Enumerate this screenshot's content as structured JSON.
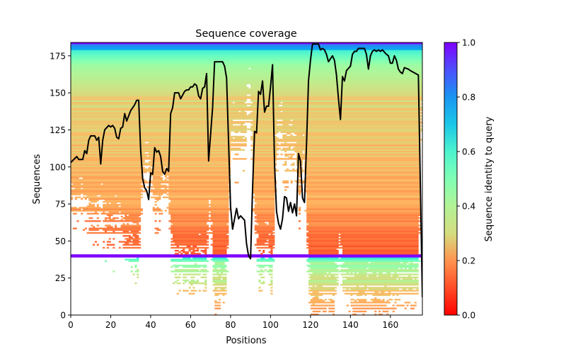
{
  "chart_data": {
    "type": "heatmap",
    "title": "Sequence coverage",
    "xlabel": "Positions",
    "ylabel": "Sequences",
    "xlim": [
      0,
      176
    ],
    "ylim": [
      0,
      184
    ],
    "xticks": [
      0,
      20,
      40,
      60,
      80,
      100,
      120,
      140,
      160
    ],
    "yticks": [
      0,
      25,
      50,
      75,
      100,
      125,
      150,
      175
    ],
    "colorbar": {
      "label": "Sequence identity to query",
      "range": [
        0,
        1
      ],
      "ticks": [
        "0.0",
        "0.2",
        "0.4",
        "0.6",
        "0.8",
        "1.0"
      ],
      "colormap": "rainbow_r"
    },
    "query_rows": [
      39,
      183
    ],
    "coverage_line": {
      "name": "coverage",
      "color": "#000000",
      "x": [
        0,
        3,
        4,
        6,
        7,
        8,
        9,
        10,
        12,
        13,
        14,
        15,
        16,
        17,
        19,
        20,
        21,
        22,
        23,
        24,
        25,
        26,
        27,
        28,
        30,
        32,
        33,
        34,
        35,
        36,
        37,
        38,
        39,
        40,
        41,
        42,
        43,
        44,
        45,
        46,
        47,
        48,
        49,
        50,
        51,
        52,
        54,
        55,
        57,
        58,
        59,
        60,
        61,
        62,
        63,
        64,
        65,
        66,
        67,
        68,
        69,
        71,
        72,
        76,
        77,
        78,
        80,
        81,
        83,
        84,
        85,
        87,
        88,
        89,
        90,
        91,
        92,
        93,
        94,
        95,
        96,
        97,
        98,
        99,
        100,
        101,
        102,
        103,
        104,
        105,
        106,
        107,
        108,
        109,
        110,
        111,
        112,
        113,
        114,
        115,
        116,
        117,
        118,
        119,
        120,
        121,
        124,
        125,
        126,
        127,
        128,
        129,
        131,
        132,
        133,
        134,
        135,
        136,
        137,
        138,
        140,
        141,
        142,
        143,
        144,
        147,
        148,
        149,
        150,
        151,
        152,
        153,
        154,
        155,
        156,
        158,
        159,
        160,
        161,
        162,
        163,
        164,
        165,
        166,
        167,
        169,
        170,
        174,
        176
      ],
      "y": [
        103,
        107,
        105,
        105,
        111,
        109,
        118,
        121,
        121,
        118,
        120,
        102,
        118,
        125,
        128,
        127,
        128,
        126,
        120,
        119,
        126,
        127,
        136,
        131,
        138,
        142,
        145,
        145,
        111,
        92,
        86,
        84,
        78,
        96,
        95,
        113,
        110,
        111,
        107,
        97,
        95,
        99,
        97,
        136,
        140,
        150,
        150,
        146,
        151,
        152,
        152,
        154,
        154,
        156,
        155,
        148,
        146,
        153,
        154,
        163,
        104,
        140,
        171,
        171,
        168,
        160,
        73,
        58,
        72,
        65,
        67,
        64,
        48,
        40,
        38,
        85,
        124,
        123,
        151,
        149,
        158,
        137,
        141,
        141,
        154,
        169,
        102,
        70,
        62,
        58,
        65,
        80,
        79,
        70,
        76,
        69,
        75,
        67,
        109,
        104,
        79,
        76,
        115,
        158,
        172,
        183,
        183,
        179,
        180,
        179,
        176,
        171,
        175,
        172,
        162,
        146,
        132,
        161,
        158,
        165,
        168,
        176,
        178,
        178,
        180,
        180,
        176,
        166,
        175,
        178,
        179,
        178,
        179,
        178,
        179,
        176,
        175,
        170,
        170,
        175,
        172,
        166,
        164,
        163,
        167,
        166,
        165,
        162,
        12
      ]
    }
  }
}
